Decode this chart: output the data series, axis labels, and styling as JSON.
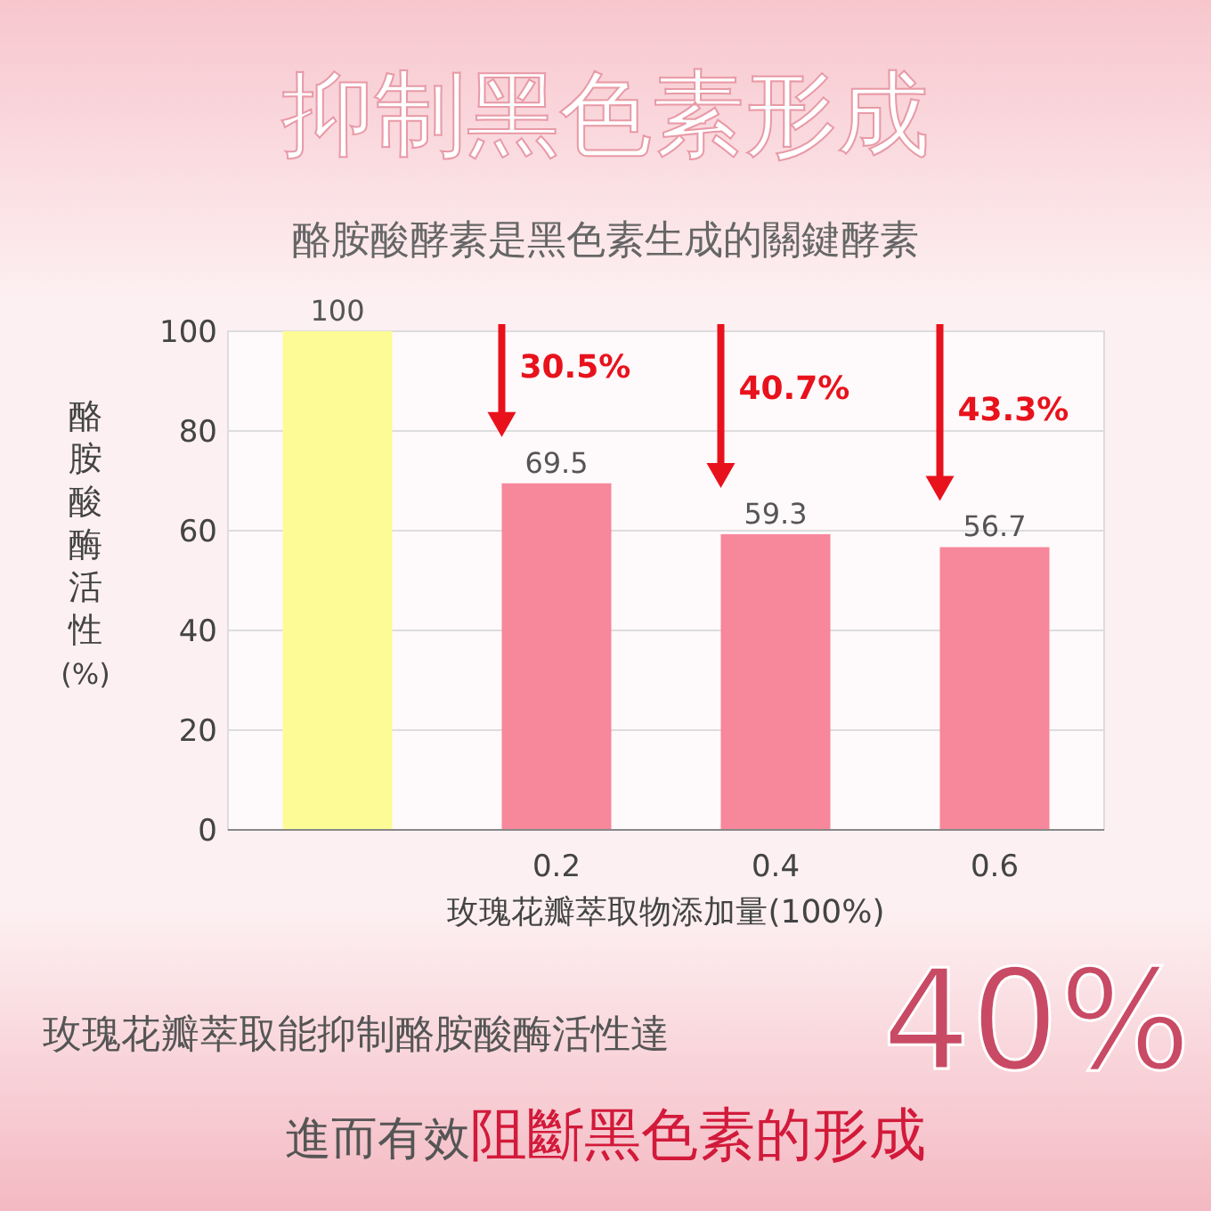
{
  "chart_data": {
    "type": "bar",
    "title": "抑制黑色素形成",
    "subtitle": "酪胺酸酵素是黑色素生成的關鍵酵素",
    "ylabel": "酪胺酸酶活性(%)",
    "xlabel": "玫瑰花瓣萃取物添加量(100%)",
    "categories": [
      null,
      "0.2",
      "0.4",
      "0.6"
    ],
    "values": [
      100,
      69.5,
      59.3,
      56.7
    ],
    "colors": [
      "#fdfb96",
      "#f7879b",
      "#f7879b",
      "#f7879b"
    ],
    "ylim": [
      0,
      100
    ],
    "yticks": [
      0,
      20,
      40,
      60,
      80,
      100
    ],
    "grid": "y",
    "data_labels": true,
    "annotations": [
      "30.5%",
      "40.7%",
      "43.3%",
      "玫瑰花瓣萃取能抑制酪胺酸酶活性達",
      "40%",
      "進而有效",
      "阻斷黑色素的形成"
    ]
  }
}
